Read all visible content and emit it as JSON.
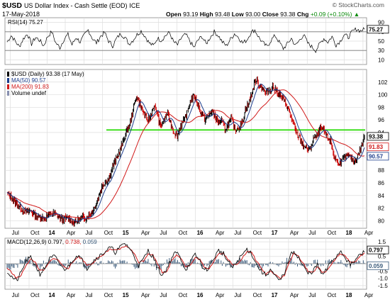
{
  "header": {
    "symbol": "$USD",
    "name": "US Dollar Index - Cash Settle (EOD)",
    "exchange": "ICE",
    "date": "17-May-2018",
    "open_label": "Open",
    "open": "93.19",
    "high_label": "High",
    "high": "93.48",
    "low_label": "Low",
    "low": "93.00",
    "close_label": "Close",
    "close": "93.38",
    "chg_label": "Chg",
    "chg": "+0.09 (+0.10%)",
    "chg_arrow": "▲",
    "copyright": "© StockCharts.com"
  },
  "colors": {
    "price": "#000000",
    "up_bar": "#000000",
    "down_bar": "#cc0000",
    "ma50": "#1c3d8c",
    "ma200": "#d01818",
    "support_line": "#33dd11",
    "macd_line": "#111111",
    "macd_signal": "#d01818",
    "histogram": "#3a5a7a",
    "volume": "#8890b0",
    "grid": "#dddddd"
  },
  "chart_data": [
    {
      "type": "line",
      "panel": "rsi",
      "title": "RSI(14) 75.27",
      "current_value": "75.27",
      "ylim": [
        0,
        100
      ],
      "y_ticks": [
        "90",
        "70",
        "50",
        "30",
        "10"
      ],
      "reference_lines": [
        70,
        30
      ],
      "series": [
        {
          "name": "RSI(14)",
          "values": [
            48,
            62,
            50,
            38,
            55,
            66,
            44,
            58,
            52,
            40,
            60,
            70,
            46,
            36,
            54,
            64,
            42,
            58,
            48,
            62,
            74,
            56,
            46,
            60,
            68,
            50,
            40,
            56,
            66,
            58,
            44,
            52,
            64,
            72,
            60,
            46,
            40,
            56,
            52,
            62,
            68,
            48,
            42,
            58,
            64,
            50,
            36,
            52,
            60,
            44,
            58,
            70,
            62,
            48,
            40,
            54,
            66,
            58,
            46,
            52,
            68,
            74,
            58,
            46,
            38,
            52,
            62,
            48,
            34,
            44,
            56,
            40,
            52,
            64,
            46,
            38,
            30,
            44,
            56,
            48,
            60,
            42,
            50,
            64,
            58,
            70,
            76,
            72,
            75.27
          ]
        }
      ]
    },
    {
      "type": "line",
      "panel": "price",
      "series": [
        {
          "name": "$USD (Daily)",
          "current_value": "93.38",
          "current_date": "(17 May)",
          "values": [
            84.3,
            83.8,
            83.2,
            82.6,
            82.0,
            81.5,
            81.4,
            81.6,
            81.0,
            80.6,
            80.6,
            80.4,
            80.8,
            81.2,
            81.0,
            80.8,
            80.2,
            80.3,
            80.4,
            80.0,
            79.8,
            80.2,
            80.4,
            80.5,
            80.9,
            81.4,
            82.6,
            84.0,
            85.6,
            86.2,
            86.9,
            88.5,
            89.7,
            91.0,
            92.4,
            94.2,
            95.1,
            97.6,
            99.8,
            98.6,
            97.2,
            96.0,
            96.5,
            98.2,
            97.4,
            95.0,
            95.6,
            97.1,
            95.6,
            94.1,
            93.4,
            95.2,
            95.8,
            97.4,
            99.2,
            99.8,
            98.5,
            97.0,
            96.1,
            96.5,
            97.4,
            96.7,
            95.6,
            95.8,
            94.6,
            95.3,
            96.2,
            94.4,
            94.9,
            95.4,
            97.6,
            98.6,
            100.4,
            102.3,
            101.6,
            101.1,
            100.2,
            100.7,
            101.2,
            100.7,
            100.0,
            99.4,
            98.5,
            97.1,
            95.5,
            93.8,
            93.1,
            92.0,
            91.5,
            91.2,
            93.1,
            93.4,
            94.6,
            94.2,
            93.3,
            92.7,
            90.4,
            89.2,
            89.3,
            89.8,
            90.4,
            90.0,
            89.4,
            90.3,
            91.6,
            93.38
          ]
        },
        {
          "name": "MA(50)",
          "current_value": "90.57"
        },
        {
          "name": "MA(200)",
          "current_value": "91.83"
        },
        {
          "name": "Volume undef"
        }
      ],
      "y_ticks": [
        "102",
        "100",
        "98",
        "96",
        "94",
        "92",
        "90",
        "88",
        "86",
        "84",
        "82",
        "80"
      ],
      "ylim": [
        78.8,
        104.0
      ],
      "support_level": 94.4,
      "value_boxes": [
        "93.38",
        "91.83",
        "90.57"
      ]
    },
    {
      "type": "line",
      "panel": "macd",
      "title": "MACD(12,26,9) 0.797, 0.738, 0.059",
      "title_parts": [
        "MACD(12,26,9)",
        "0.797,",
        "0.738,",
        "0.059"
      ],
      "ylim": [
        -1.75,
        1.75
      ],
      "y_ticks": [
        "1.5",
        "1.0",
        "0.5",
        "0.0",
        "-0.5",
        "-1.0",
        "-1.5"
      ],
      "value_boxes": [
        "0.797",
        "0.059"
      ],
      "series": [
        {
          "name": "MACD",
          "values": [
            -0.5,
            -0.9,
            -1.2,
            -0.6,
            0.2,
            0.4,
            -0.1,
            -0.7,
            -0.3,
            0.3,
            0.5,
            0.1,
            -0.4,
            -0.2,
            0.3,
            0.6,
            0.2,
            -0.3,
            0.1,
            0.4,
            0.6,
            0.9,
            1.1,
            0.8,
            1.1,
            1.4,
            1.1,
            0.5,
            -0.1,
            0.3,
            0.9,
            0.5,
            -0.3,
            -0.8,
            -0.3,
            0.4,
            0.8,
            0.3,
            -0.4,
            0.1,
            0.6,
            0.2,
            -0.5,
            -0.2,
            0.4,
            0.9,
            0.7,
            0.1,
            -0.3,
            0.2,
            0.6,
            1.0,
            0.7,
            0.0,
            -0.5,
            -0.8,
            -0.4,
            -0.9,
            -1.2,
            -0.6,
            0.4,
            0.9,
            0.4,
            -0.2,
            -0.7,
            -0.5,
            -0.1,
            -0.8,
            -0.4,
            0.2,
            0.5,
            0.9,
            0.4,
            -0.1,
            0.2,
            0.6,
            0.797
          ]
        },
        {
          "name": "Signal",
          "values": [
            -0.3,
            -0.6,
            -1.0,
            -0.8,
            -0.1,
            0.3,
            0.1,
            -0.5,
            -0.4,
            0.1,
            0.4,
            0.2,
            -0.2,
            -0.3,
            0.1,
            0.5,
            0.3,
            -0.1,
            0.0,
            0.3,
            0.5,
            0.8,
            1.0,
            0.9,
            1.0,
            1.2,
            1.1,
            0.7,
            0.1,
            0.2,
            0.7,
            0.6,
            0.0,
            -0.6,
            -0.5,
            0.2,
            0.6,
            0.4,
            -0.2,
            -0.1,
            0.4,
            0.3,
            -0.3,
            -0.3,
            0.2,
            0.7,
            0.7,
            0.3,
            -0.1,
            0.0,
            0.4,
            0.8,
            0.8,
            0.2,
            -0.3,
            -0.7,
            -0.5,
            -0.7,
            -1.0,
            -0.8,
            0.1,
            0.7,
            0.5,
            0.0,
            -0.5,
            -0.6,
            -0.2,
            -0.6,
            -0.5,
            0.0,
            0.4,
            0.7,
            0.5,
            0.1,
            0.1,
            0.5,
            0.738
          ]
        }
      ]
    }
  ],
  "x_axis": {
    "labels": [
      {
        "text": "Jul",
        "pos": 0.018
      },
      {
        "text": "Oct",
        "pos": 0.08
      },
      {
        "text": "14",
        "pos": 0.14
      },
      {
        "text": "Apr",
        "pos": 0.2
      },
      {
        "text": "Jul",
        "pos": 0.262
      },
      {
        "text": "Oct",
        "pos": 0.324
      },
      {
        "text": "15",
        "pos": 0.385
      },
      {
        "text": "Apr",
        "pos": 0.447
      },
      {
        "text": "Jul",
        "pos": 0.509
      },
      {
        "text": "Oct",
        "pos": 0.571
      },
      {
        "text": "16",
        "pos": 0.632
      },
      {
        "text": "Apr",
        "pos": 0.694
      },
      {
        "text": "Jul",
        "pos": 0.756
      },
      {
        "text": "Oct",
        "pos": 0.818
      },
      {
        "text": "17",
        "pos": 0.879
      },
      {
        "text": "Apr",
        "pos": 0.941
      },
      {
        "text": "Jul",
        "pos": 1.003
      },
      {
        "text": "Oct",
        "pos": 1.065
      },
      {
        "text": "18",
        "pos": 1.126
      },
      {
        "text": "Apr",
        "pos": 1.188
      }
    ]
  }
}
